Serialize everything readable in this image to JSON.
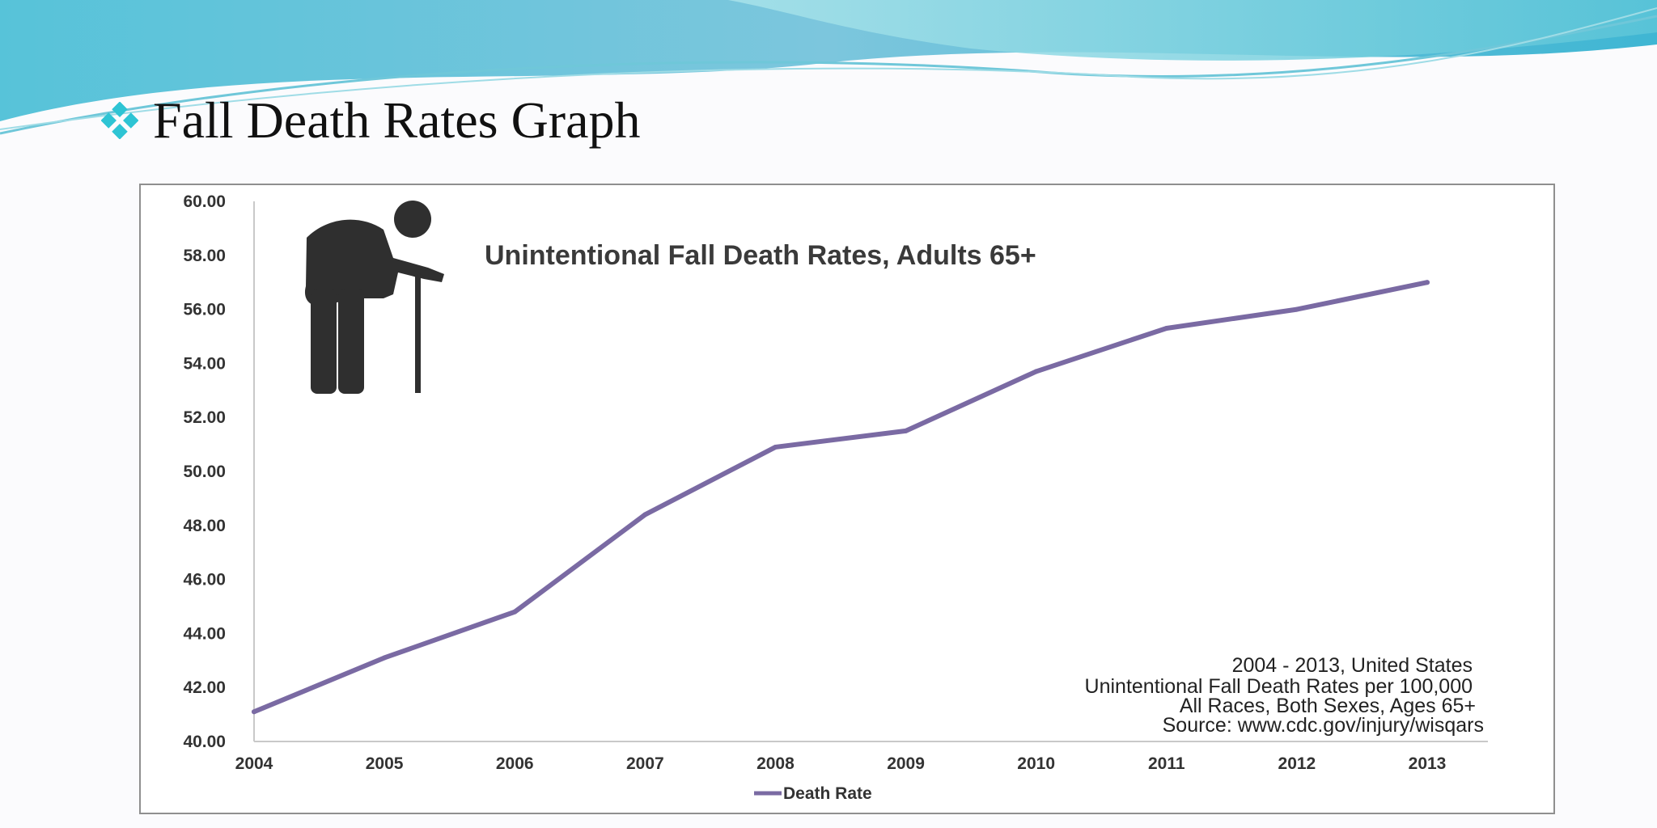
{
  "slide": {
    "title": "Fall Death Rates Graph",
    "bullet_icon": "diamond-bullet-icon",
    "accent_color": "#2ec4d4"
  },
  "chart_data": {
    "type": "line",
    "title": "Unintentional Fall Death Rates, Adults 65+",
    "x": [
      "2004",
      "2005",
      "2006",
      "2007",
      "2008",
      "2009",
      "2010",
      "2011",
      "2012",
      "2013"
    ],
    "series": [
      {
        "name": "Death Rate",
        "color": "#7a6aa3",
        "values": [
          41.1,
          43.1,
          44.8,
          48.4,
          50.9,
          51.5,
          53.7,
          55.3,
          56.0,
          57.0
        ]
      }
    ],
    "y_ticks": [
      "60.00",
      "58.00",
      "56.00",
      "54.00",
      "52.00",
      "50.00",
      "48.00",
      "46.00",
      "44.00",
      "42.00",
      "40.00"
    ],
    "ylim": [
      40,
      60
    ],
    "xlabel": "",
    "ylabel": "",
    "grid": false,
    "legend_position": "bottom",
    "icon": "elderly-person-with-cane-icon",
    "annotation": [
      "2004 - 2013, United States",
      "Unintentional Fall Death Rates per 100,000",
      "All Races, Both Sexes, Ages 65+",
      "Source: www.cdc.gov/injury/wisqars"
    ]
  }
}
